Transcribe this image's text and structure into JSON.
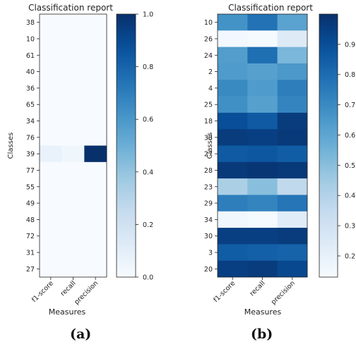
{
  "chart_data": [
    {
      "type": "heatmap",
      "panel_label": "(a)",
      "title": "Classification report",
      "xlabel": "Measures",
      "ylabel": "Classes",
      "x": [
        "f1-score",
        "recall",
        "precision"
      ],
      "y": [
        "38",
        "10",
        "61",
        "40",
        "36",
        "65",
        "34",
        "76",
        "39",
        "77",
        "55",
        "49",
        "48",
        "72",
        "31",
        "27"
      ],
      "values": [
        [
          0,
          0,
          0
        ],
        [
          0,
          0,
          0
        ],
        [
          0,
          0,
          0
        ],
        [
          0,
          0,
          0
        ],
        [
          0,
          0,
          0
        ],
        [
          0,
          0,
          0
        ],
        [
          0,
          0,
          0
        ],
        [
          0,
          0,
          0
        ],
        [
          0.07,
          0.04,
          1.0
        ],
        [
          0,
          0,
          0
        ],
        [
          0,
          0,
          0
        ],
        [
          0,
          0,
          0
        ],
        [
          0,
          0,
          0
        ],
        [
          0,
          0,
          0
        ],
        [
          0,
          0,
          0
        ],
        [
          0,
          0,
          0
        ]
      ],
      "colormap": "Blues",
      "colorbar": {
        "range": [
          0.0,
          1.0
        ],
        "ticks": [
          0.0,
          0.2,
          0.4,
          0.6,
          0.8,
          1.0
        ],
        "tick_labels": [
          "0.0",
          "0.2",
          "0.4",
          "0.6",
          "0.8",
          "1.0"
        ]
      }
    },
    {
      "type": "heatmap",
      "panel_label": "(b)",
      "title": "Classification report",
      "xlabel": "Measures",
      "ylabel": "Classes",
      "x": [
        "f1-score",
        "recall",
        "precision"
      ],
      "y": [
        "10",
        "26",
        "24",
        "2",
        "4",
        "25",
        "18",
        "33",
        "27",
        "28",
        "23",
        "29",
        "34",
        "30",
        "3",
        "20"
      ],
      "values": [
        [
          0.67,
          0.78,
          0.61
        ],
        [
          0.15,
          0.14,
          0.24
        ],
        [
          0.63,
          0.79,
          0.53
        ],
        [
          0.64,
          0.62,
          0.65
        ],
        [
          0.7,
          0.64,
          0.74
        ],
        [
          0.68,
          0.62,
          0.72
        ],
        [
          0.9,
          0.86,
          0.96
        ],
        [
          0.96,
          0.95,
          0.97
        ],
        [
          0.86,
          0.87,
          0.85
        ],
        [
          0.97,
          0.98,
          0.97
        ],
        [
          0.42,
          0.5,
          0.36
        ],
        [
          0.74,
          0.72,
          0.77
        ],
        [
          0.16,
          0.14,
          0.23
        ],
        [
          0.95,
          0.95,
          0.96
        ],
        [
          0.85,
          0.84,
          0.83
        ],
        [
          0.95,
          0.96,
          0.92
        ]
      ],
      "colormap": "Blues",
      "colorbar": {
        "range": [
          0.13,
          1.0
        ],
        "ticks": [
          0.2,
          0.3,
          0.4,
          0.5,
          0.6,
          0.7,
          0.8,
          0.9
        ],
        "tick_labels": [
          "0.2",
          "0.3",
          "0.4",
          "0.5",
          "0.6",
          "0.7",
          "0.8",
          "0.9"
        ]
      }
    }
  ]
}
